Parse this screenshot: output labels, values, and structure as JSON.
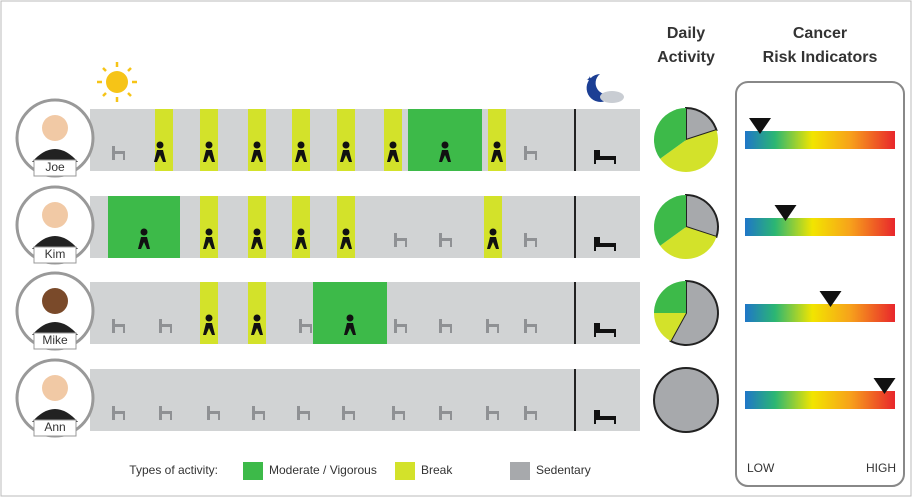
{
  "header": {
    "activity_title": "Daily Activity",
    "risk_title": "Cancer Risk Indicators"
  },
  "people": [
    {
      "name": "Joe",
      "activity": {
        "sedentary": 20,
        "break": 45,
        "moderate": 35
      },
      "risk": 10
    },
    {
      "name": "Kim",
      "activity": {
        "sedentary": 30,
        "break": 35,
        "moderate": 35
      },
      "risk": 27
    },
    {
      "name": "Mike",
      "activity": {
        "sedentary": 58,
        "break": 17,
        "moderate": 25
      },
      "risk": 57
    },
    {
      "name": "Ann",
      "activity": {
        "sedentary": 100,
        "break": 0,
        "moderate": 0
      },
      "risk": 93
    }
  ],
  "risk_scale": {
    "low": "LOW",
    "high": "HIGH",
    "range": [
      0,
      100
    ]
  },
  "legend": {
    "title": "Types of activity:",
    "moderate": "Moderate / Vigorous",
    "break": "Break",
    "sedentary": "Sedentary"
  },
  "colors": {
    "moderate": "#3dba49",
    "break": "#d3e22a",
    "sedentary": "#a7a9ac"
  }
}
